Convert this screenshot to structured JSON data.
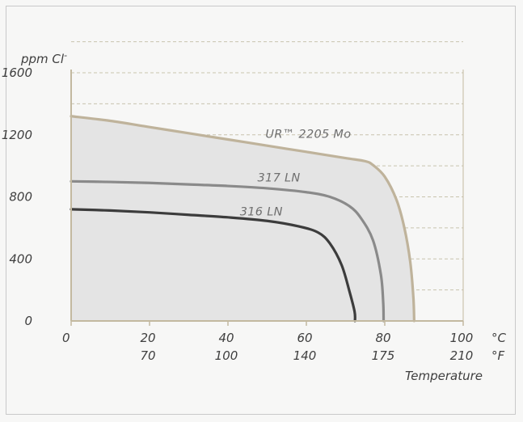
{
  "chart_data": {
    "type": "line",
    "ylabel": "ppm Cl",
    "ylabel_superscript": "-",
    "xlabel": "Temperature",
    "x_unit_primary": "°C",
    "x_unit_secondary": "°F",
    "xlim": [
      0,
      100
    ],
    "ylim": [
      0,
      1600
    ],
    "y_ticks": [
      "0",
      "400",
      "800",
      "1200",
      "1600"
    ],
    "y_tick_values": [
      0,
      400,
      800,
      1200,
      1600
    ],
    "x_ticks_c": [
      "0",
      "20",
      "40",
      "60",
      "80",
      "100"
    ],
    "x_tick_values": [
      0,
      20,
      40,
      60,
      80,
      100
    ],
    "x_ticks_f": [
      "",
      "70",
      "100",
      "140",
      "175",
      "210"
    ],
    "grid": "dashed horizontal",
    "series": [
      {
        "name": "UR™ 2205 Mo",
        "color": "#bfb39b",
        "points": [
          [
            0,
            1320
          ],
          [
            10,
            1290
          ],
          [
            20,
            1250
          ],
          [
            30,
            1210
          ],
          [
            40,
            1170
          ],
          [
            50,
            1130
          ],
          [
            60,
            1090
          ],
          [
            70,
            1050
          ],
          [
            75,
            1030
          ],
          [
            77,
            1005
          ],
          [
            80,
            930
          ],
          [
            83,
            780
          ],
          [
            85,
            600
          ],
          [
            86.5,
            380
          ],
          [
            87.3,
            150
          ],
          [
            87.5,
            0
          ]
        ]
      },
      {
        "name": "317 LN",
        "color": "#8a8a8a",
        "points": [
          [
            0,
            900
          ],
          [
            10,
            896
          ],
          [
            20,
            890
          ],
          [
            30,
            880
          ],
          [
            40,
            870
          ],
          [
            50,
            855
          ],
          [
            60,
            830
          ],
          [
            66,
            800
          ],
          [
            71,
            740
          ],
          [
            74,
            660
          ],
          [
            77,
            520
          ],
          [
            79,
            300
          ],
          [
            79.6,
            120
          ],
          [
            79.7,
            0
          ]
        ]
      },
      {
        "name": "316 LN",
        "color": "#3c3c3c",
        "points": [
          [
            0,
            720
          ],
          [
            10,
            712
          ],
          [
            20,
            700
          ],
          [
            30,
            684
          ],
          [
            40,
            668
          ],
          [
            50,
            645
          ],
          [
            58,
            610
          ],
          [
            63,
            570
          ],
          [
            66,
            500
          ],
          [
            69,
            360
          ],
          [
            71,
            190
          ],
          [
            72.3,
            60
          ],
          [
            72.4,
            0
          ]
        ]
      }
    ],
    "annotations": [
      {
        "text": "UR™ 2205 Mo",
        "series": 0,
        "at_x": 60.5,
        "at_y": 1180
      },
      {
        "text": "317 LN",
        "series": 1,
        "at_x": 53,
        "at_y": 900
      },
      {
        "text": "316 LN",
        "series": 2,
        "at_x": 48.5,
        "at_y": 680
      }
    ],
    "area_fill": "#e4e4e4"
  }
}
